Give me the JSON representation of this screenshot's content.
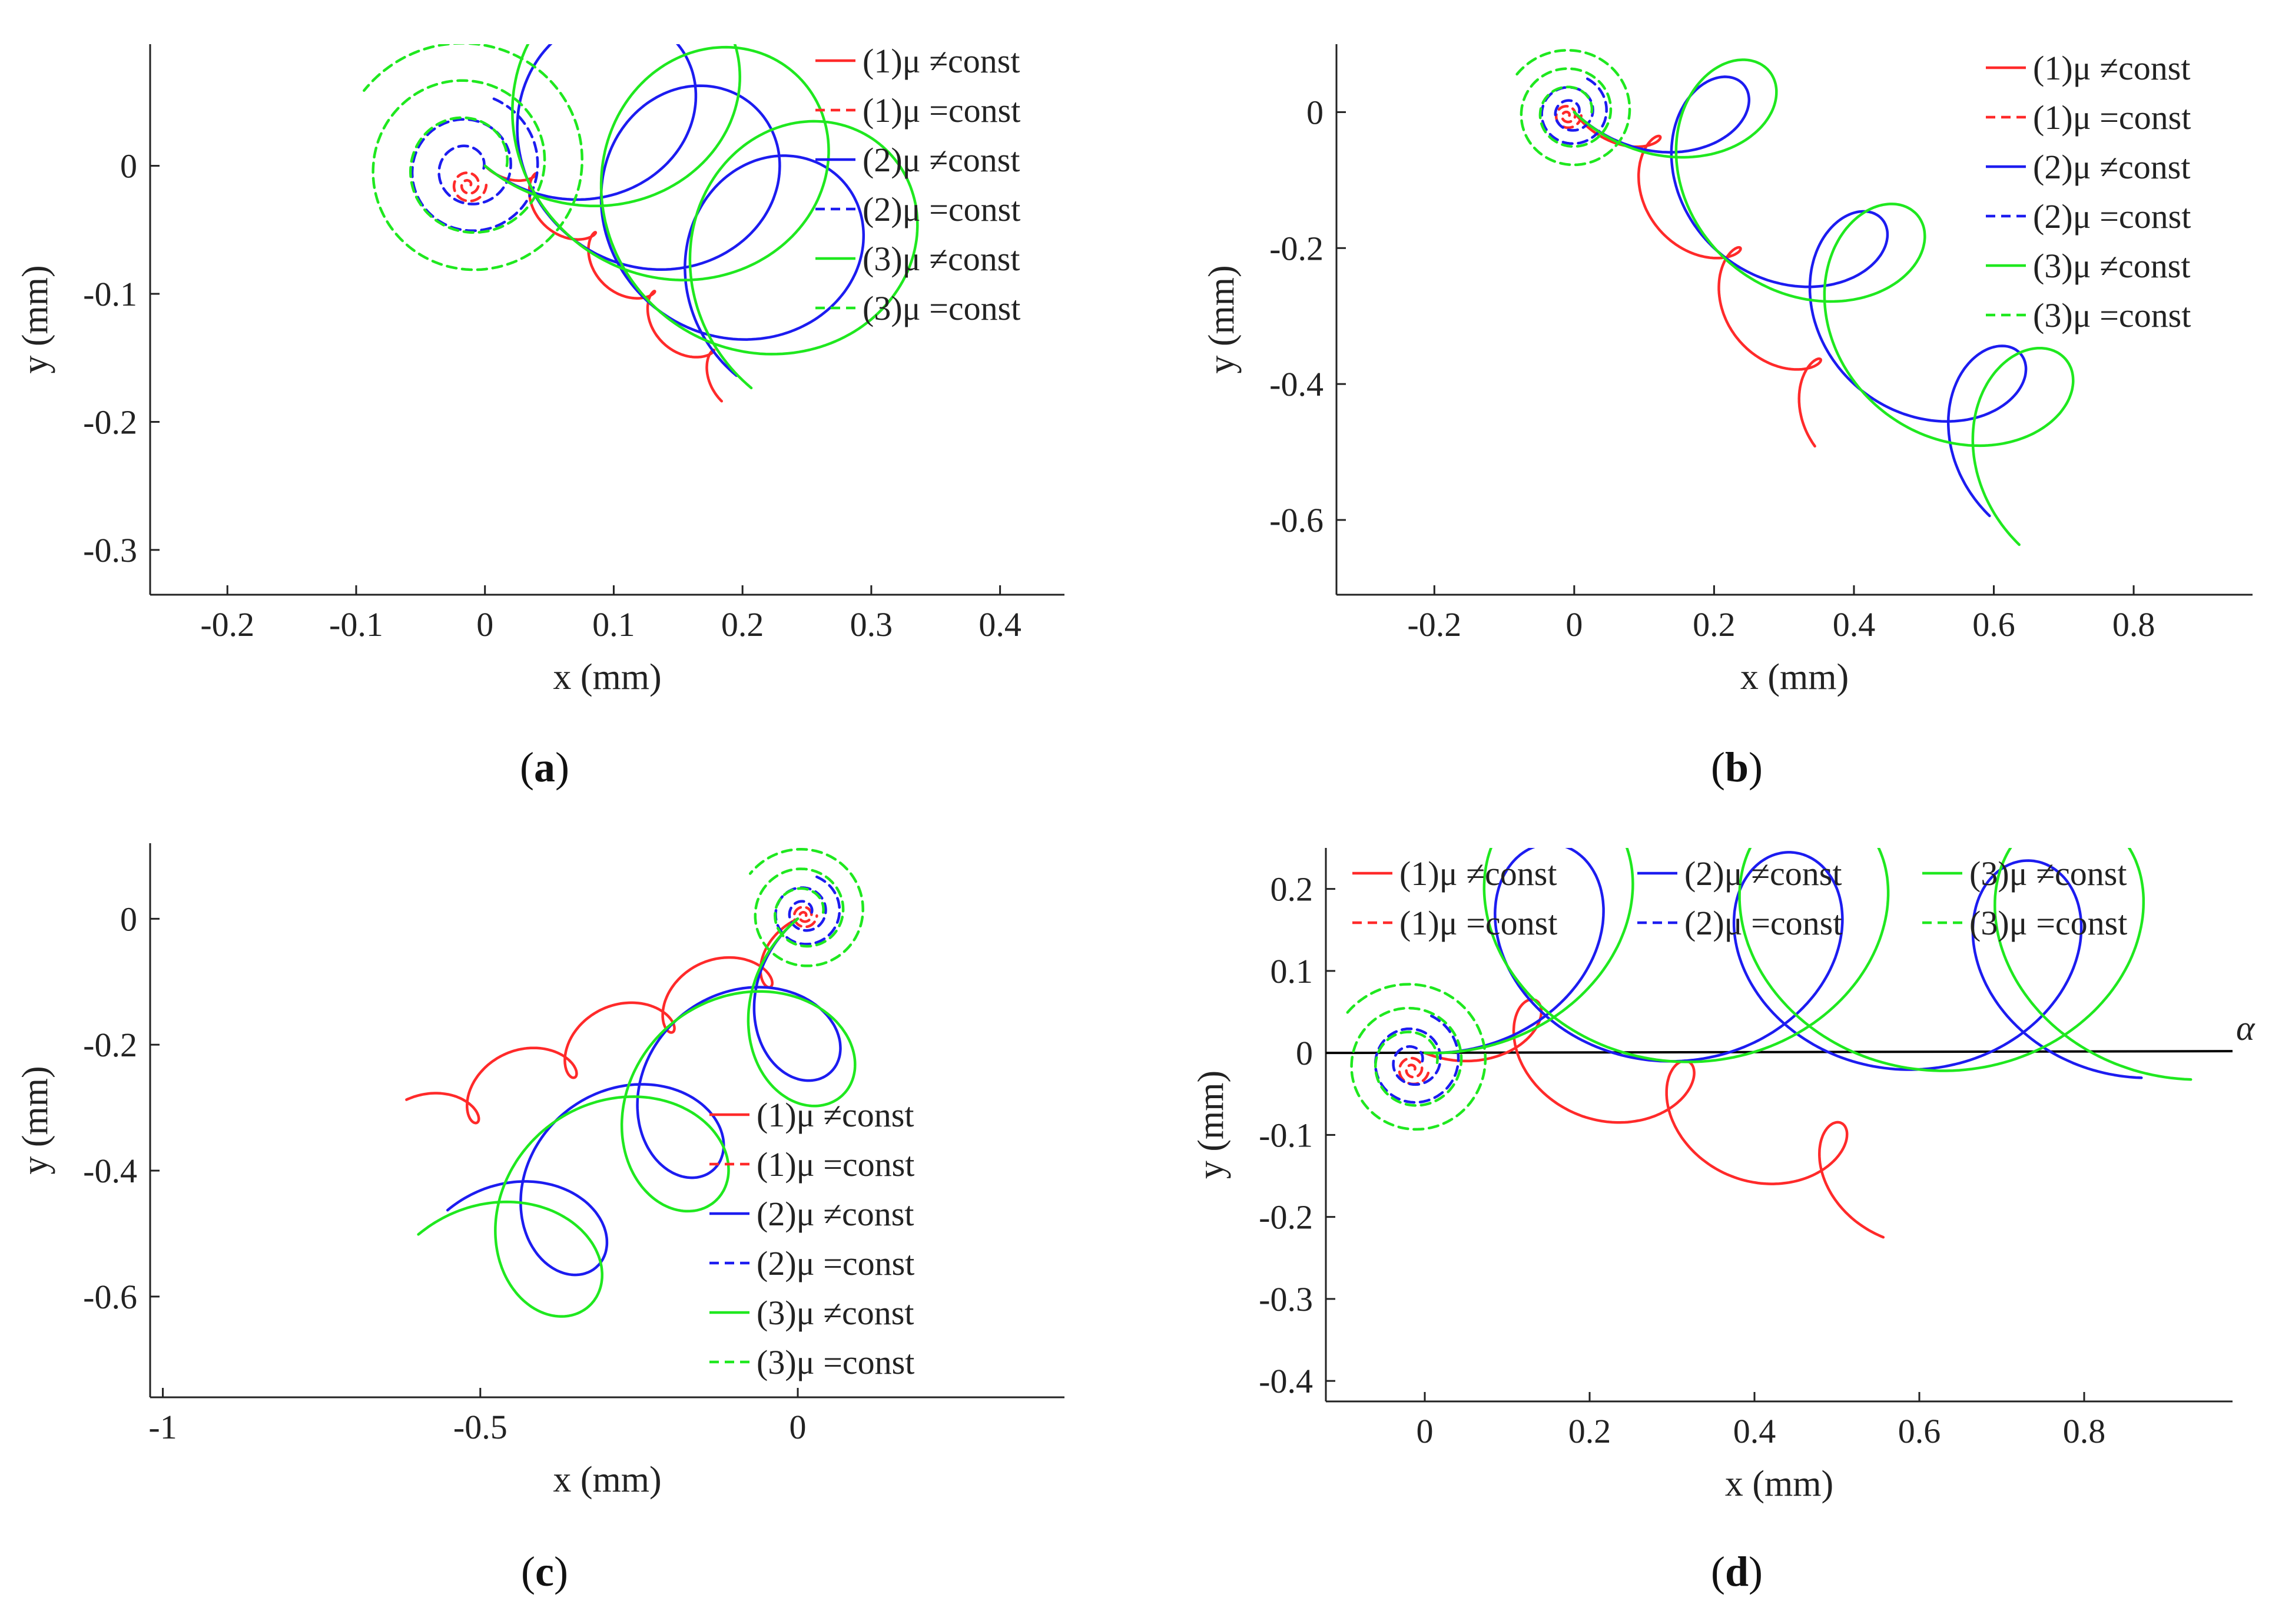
{
  "colors": {
    "c1": "#ff2a2a",
    "c2": "#1c1cf0",
    "c3": "#1fe81f",
    "axis": "#222222",
    "alpha_line": "#000000"
  },
  "legend_labels": [
    "(1)μ ≠const",
    "(1)μ =const",
    "(2)μ ≠const",
    "(2)μ =const",
    "(3)μ ≠const",
    "(3)μ =const"
  ],
  "captions": {
    "a": "a",
    "b": "b",
    "c": "c",
    "d": "d"
  },
  "chart_data": [
    {
      "id": "a",
      "type": "line",
      "xlabel": "x (mm)",
      "ylabel": "y (mm)",
      "xlim": [
        -0.26,
        0.45
      ],
      "ylim": [
        -0.335,
        0.095
      ],
      "xticks": [
        -0.2,
        -0.1,
        0,
        0.1,
        0.2,
        0.3,
        0.4
      ],
      "xtick_labels": [
        "-0.2",
        "-0.1",
        "0",
        "0.1",
        "0.2",
        "0.3",
        "0.4"
      ],
      "yticks": [
        0,
        -0.1,
        -0.2,
        -0.3
      ],
      "ytick_labels": [
        "0",
        "-0.1",
        "-0.2",
        "-0.3"
      ],
      "legend_position": "top-right",
      "series": [
        {
          "name": "(1)μ ≠const",
          "color": "c1",
          "style": "solid",
          "kind": "trochoid",
          "start": [
            0,
            0
          ],
          "dir_deg": -45,
          "step": 0.065,
          "radius": 0.012,
          "count": 4
        },
        {
          "name": "(1)μ =const",
          "color": "c1",
          "style": "dashed",
          "kind": "spiral",
          "center": [
            -0.013,
            -0.015
          ],
          "r_start": 0.002,
          "r_end": 0.014,
          "turns": 2
        },
        {
          "name": "(2)μ ≠const",
          "color": "c2",
          "style": "solid",
          "kind": "trochoid",
          "start": [
            0,
            0
          ],
          "dir_deg": -40,
          "step": 0.085,
          "radius": 0.085,
          "count": 3
        },
        {
          "name": "(2)μ =const",
          "color": "c2",
          "style": "dashed",
          "kind": "spiral",
          "center": [
            -0.013,
            -0.002
          ],
          "r_start": 0.012,
          "r_end": 0.058,
          "turns": 2.2
        },
        {
          "name": "(3)μ ≠const",
          "color": "c3",
          "style": "solid",
          "kind": "trochoid",
          "start": [
            0,
            0
          ],
          "dir_deg": -40,
          "step": 0.09,
          "radius": 0.105,
          "count": 3
        },
        {
          "name": "(3)μ =const",
          "color": "c3",
          "style": "dashed",
          "kind": "spiral",
          "center": [
            -0.013,
            0.0
          ],
          "r_start": 0.03,
          "r_end": 0.1,
          "turns": 2.4
        }
      ]
    },
    {
      "id": "b",
      "type": "line",
      "xlabel": "x (mm)",
      "ylabel": "y (mm)",
      "xlim": [
        -0.34,
        0.97
      ],
      "ylim": [
        -0.71,
        0.1
      ],
      "xticks": [
        -0.2,
        0,
        0.2,
        0.4,
        0.6,
        0.8
      ],
      "xtick_labels": [
        "-0.2",
        "0",
        "0.2",
        "0.4",
        "0.6",
        "0.8"
      ],
      "yticks": [
        0,
        -0.2,
        -0.4,
        -0.6
      ],
      "ytick_labels": [
        "0",
        "-0.2",
        "-0.4",
        "-0.6"
      ],
      "legend_position": "top-right",
      "series": [
        {
          "name": "(1)μ ≠const",
          "color": "c1",
          "style": "solid",
          "kind": "trochoid",
          "start": [
            0,
            0
          ],
          "dir_deg": -55,
          "step": 0.2,
          "radius": 0.04,
          "count": 3
        },
        {
          "name": "(1)μ =const",
          "color": "c1",
          "style": "dashed",
          "kind": "spiral",
          "center": [
            -0.01,
            -0.005
          ],
          "r_start": 0.003,
          "r_end": 0.02,
          "turns": 2
        },
        {
          "name": "(2)μ ≠const",
          "color": "c2",
          "style": "solid",
          "kind": "trochoid",
          "start": [
            0,
            0
          ],
          "dir_deg": -45,
          "step": 0.28,
          "radius": 0.1,
          "count": 3
        },
        {
          "name": "(2)μ =const",
          "color": "c2",
          "style": "dashed",
          "kind": "spiral",
          "center": [
            -0.005,
            0.0
          ],
          "r_start": 0.012,
          "r_end": 0.055,
          "turns": 2.2
        },
        {
          "name": "(3)μ ≠const",
          "color": "c3",
          "style": "solid",
          "kind": "trochoid",
          "start": [
            0,
            0
          ],
          "dir_deg": -45,
          "step": 0.3,
          "radius": 0.12,
          "count": 3
        },
        {
          "name": "(3)μ =const",
          "color": "c3",
          "style": "dashed",
          "kind": "spiral",
          "center": [
            -0.005,
            0.0
          ],
          "r_start": 0.03,
          "r_end": 0.095,
          "turns": 2.4
        }
      ]
    },
    {
      "id": "c",
      "type": "line",
      "xlabel": "x (mm)",
      "ylabel": "y (mm)",
      "xlim": [
        -1.02,
        0.42
      ],
      "ylim": [
        -0.76,
        0.12
      ],
      "xticks": [
        -1,
        -0.5,
        0
      ],
      "xtick_labels": [
        "-1",
        "-0.5",
        "0"
      ],
      "yticks": [
        0,
        -0.2,
        -0.4,
        -0.6
      ],
      "ytick_labels": [
        "0",
        "-0.2",
        "-0.4",
        "-0.6"
      ],
      "legend_position": "bottom-right",
      "series": [
        {
          "name": "(1)μ ≠const",
          "color": "c1",
          "style": "solid",
          "kind": "trochoid",
          "start": [
            0,
            0
          ],
          "dir_deg": -155,
          "step": 0.17,
          "radius": 0.04,
          "count": 4
        },
        {
          "name": "(1)μ =const",
          "color": "c1",
          "style": "dashed",
          "kind": "spiral",
          "center": [
            0.01,
            0.005
          ],
          "r_start": 0.003,
          "r_end": 0.02,
          "turns": 2
        },
        {
          "name": "(2)μ ≠const",
          "color": "c2",
          "style": "solid",
          "kind": "trochoid",
          "start": [
            0,
            0
          ],
          "dir_deg": -140,
          "step": 0.24,
          "radius": 0.11,
          "count": 3
        },
        {
          "name": "(2)μ =const",
          "color": "c2",
          "style": "dashed",
          "kind": "spiral",
          "center": [
            0.01,
            0.01
          ],
          "r_start": 0.012,
          "r_end": 0.06,
          "turns": 2.2
        },
        {
          "name": "(3)μ ≠const",
          "color": "c3",
          "style": "solid",
          "kind": "trochoid",
          "start": [
            0,
            0
          ],
          "dir_deg": -140,
          "step": 0.26,
          "radius": 0.13,
          "count": 3
        },
        {
          "name": "(3)μ =const",
          "color": "c3",
          "style": "dashed",
          "kind": "spiral",
          "center": [
            0.01,
            0.01
          ],
          "r_start": 0.03,
          "r_end": 0.105,
          "turns": 2.4
        }
      ]
    },
    {
      "id": "d",
      "type": "line",
      "xlabel": "x (mm)",
      "ylabel": "y (mm)",
      "xlim": [
        -0.12,
        0.98
      ],
      "ylim": [
        -0.425,
        0.25
      ],
      "xticks": [
        0,
        0.2,
        0.4,
        0.6,
        0.8
      ],
      "xtick_labels": [
        "0",
        "0.2",
        "0.4",
        "0.6",
        "0.8"
      ],
      "yticks": [
        0.2,
        0.1,
        0,
        -0.1,
        -0.2,
        -0.3,
        -0.4
      ],
      "ytick_labels": [
        "0.2",
        "0.1",
        "0",
        "-0.1",
        "-0.2",
        "-0.3",
        "-0.4"
      ],
      "legend_position": "top (3 columns)",
      "reference_line": {
        "label": "α",
        "y": 0
      },
      "series": [
        {
          "name": "(1)μ ≠const",
          "color": "c1",
          "style": "solid",
          "kind": "trochoid",
          "start": [
            0,
            0
          ],
          "dir_deg": -22,
          "step": 0.2,
          "radius": 0.055,
          "count": 3
        },
        {
          "name": "(1)μ =const",
          "color": "c1",
          "style": "dashed",
          "kind": "spiral",
          "center": [
            -0.015,
            -0.02
          ],
          "r_start": 0.003,
          "r_end": 0.02,
          "turns": 2
        },
        {
          "name": "(2)μ ≠const",
          "color": "c2",
          "style": "solid",
          "kind": "trochoid",
          "start": [
            0,
            0
          ],
          "dir_deg": -2,
          "step": 0.29,
          "radius": 0.13,
          "count": 3
        },
        {
          "name": "(2)μ =const",
          "color": "c2",
          "style": "dashed",
          "kind": "spiral",
          "center": [
            -0.015,
            -0.01
          ],
          "r_start": 0.012,
          "r_end": 0.06,
          "turns": 2.2
        },
        {
          "name": "(3)μ ≠const",
          "color": "c3",
          "style": "solid",
          "kind": "trochoid",
          "start": [
            0,
            0
          ],
          "dir_deg": -2,
          "step": 0.31,
          "radius": 0.16,
          "count": 3
        },
        {
          "name": "(3)μ =const",
          "color": "c3",
          "style": "dashed",
          "kind": "spiral",
          "center": [
            -0.015,
            -0.012
          ],
          "r_start": 0.03,
          "r_end": 0.1,
          "turns": 2.4
        }
      ]
    }
  ]
}
